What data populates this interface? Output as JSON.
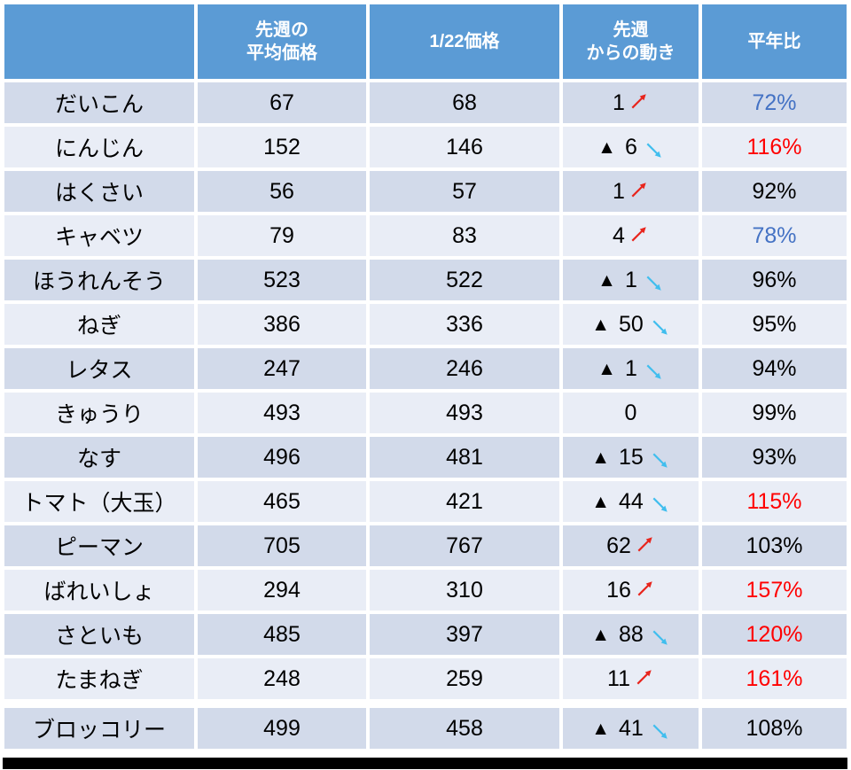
{
  "colors": {
    "header_bg": "#5B9BD5",
    "header_text": "#FFFFFF",
    "row_band_dark": "#D2DAEA",
    "row_band_light": "#E9EDF6",
    "text": "#000000",
    "up_arrow_red": "#E8251D",
    "down_arrow_cyan": "#41BEEE",
    "ratio_red": "#FF0000",
    "ratio_blue": "#4472C4",
    "ratio_black": "#000000",
    "bottom_border": "#000000"
  },
  "chart_data": {
    "type": "table",
    "title": "",
    "columns": [
      {
        "id": "name",
        "line1": "",
        "line2": ""
      },
      {
        "id": "last_week_avg",
        "line1": "先週の",
        "line2": "平均価格"
      },
      {
        "id": "price_0122",
        "line1": "1/22価格",
        "line2": ""
      },
      {
        "id": "movement",
        "line1": "先週",
        "line2": "からの動き"
      },
      {
        "id": "ratio_vs_normal",
        "line1": "平年比",
        "line2": ""
      }
    ],
    "rows": [
      {
        "name": "だいこん",
        "last_week_avg": 67,
        "price_0122": 68,
        "change": 1,
        "movement": {
          "marker": "",
          "value": "1",
          "direction": "up"
        },
        "ratio": {
          "display": "72%",
          "color": "blue"
        }
      },
      {
        "name": "にんじん",
        "last_week_avg": 152,
        "price_0122": 146,
        "change": -6,
        "movement": {
          "marker": "▲",
          "value": "6",
          "direction": "down"
        },
        "ratio": {
          "display": "116%",
          "color": "red"
        }
      },
      {
        "name": "はくさい",
        "last_week_avg": 56,
        "price_0122": 57,
        "change": 1,
        "movement": {
          "marker": "",
          "value": "1",
          "direction": "up"
        },
        "ratio": {
          "display": "92%",
          "color": "black"
        }
      },
      {
        "name": "キャベツ",
        "last_week_avg": 79,
        "price_0122": 83,
        "change": 4,
        "movement": {
          "marker": "",
          "value": "4",
          "direction": "up"
        },
        "ratio": {
          "display": "78%",
          "color": "blue"
        }
      },
      {
        "name": "ほうれんそう",
        "last_week_avg": 523,
        "price_0122": 522,
        "change": -1,
        "movement": {
          "marker": "▲",
          "value": "1",
          "direction": "down"
        },
        "ratio": {
          "display": "96%",
          "color": "black"
        }
      },
      {
        "name": "ねぎ",
        "last_week_avg": 386,
        "price_0122": 336,
        "change": -50,
        "movement": {
          "marker": "▲",
          "value": "50",
          "direction": "down"
        },
        "ratio": {
          "display": "95%",
          "color": "black"
        }
      },
      {
        "name": "レタス",
        "last_week_avg": 247,
        "price_0122": 246,
        "change": -1,
        "movement": {
          "marker": "▲",
          "value": "1",
          "direction": "down"
        },
        "ratio": {
          "display": "94%",
          "color": "black"
        }
      },
      {
        "name": "きゅうり",
        "last_week_avg": 493,
        "price_0122": 493,
        "change": 0,
        "movement": {
          "marker": "",
          "value": "0",
          "direction": "none"
        },
        "ratio": {
          "display": "99%",
          "color": "black"
        }
      },
      {
        "name": "なす",
        "last_week_avg": 496,
        "price_0122": 481,
        "change": -15,
        "movement": {
          "marker": "▲",
          "value": "15",
          "direction": "down"
        },
        "ratio": {
          "display": "93%",
          "color": "black"
        }
      },
      {
        "name": "トマト（大玉）",
        "last_week_avg": 465,
        "price_0122": 421,
        "change": -44,
        "movement": {
          "marker": "▲",
          "value": "44",
          "direction": "down"
        },
        "ratio": {
          "display": "115%",
          "color": "red"
        }
      },
      {
        "name": "ピーマン",
        "last_week_avg": 705,
        "price_0122": 767,
        "change": 62,
        "movement": {
          "marker": "",
          "value": "62",
          "direction": "up"
        },
        "ratio": {
          "display": "103%",
          "color": "black"
        }
      },
      {
        "name": "ばれいしょ",
        "last_week_avg": 294,
        "price_0122": 310,
        "change": 16,
        "movement": {
          "marker": "",
          "value": "16",
          "direction": "up"
        },
        "ratio": {
          "display": "157%",
          "color": "red"
        }
      },
      {
        "name": "さといも",
        "last_week_avg": 485,
        "price_0122": 397,
        "change": -88,
        "movement": {
          "marker": "▲",
          "value": "88",
          "direction": "down"
        },
        "ratio": {
          "display": "120%",
          "color": "red"
        }
      },
      {
        "name": "たまねぎ",
        "last_week_avg": 248,
        "price_0122": 259,
        "change": 11,
        "movement": {
          "marker": "",
          "value": "11",
          "direction": "up"
        },
        "ratio": {
          "display": "161%",
          "color": "red"
        }
      },
      {
        "name": "ブロッコリー",
        "last_week_avg": 499,
        "price_0122": 458,
        "change": -41,
        "movement": {
          "marker": "▲",
          "value": "41",
          "direction": "down"
        },
        "ratio": {
          "display": "108%",
          "color": "black"
        }
      }
    ],
    "layout": {
      "banding": "alternating rows starting dark",
      "separator_before_last_row": true,
      "thick_bottom_border": true
    }
  }
}
